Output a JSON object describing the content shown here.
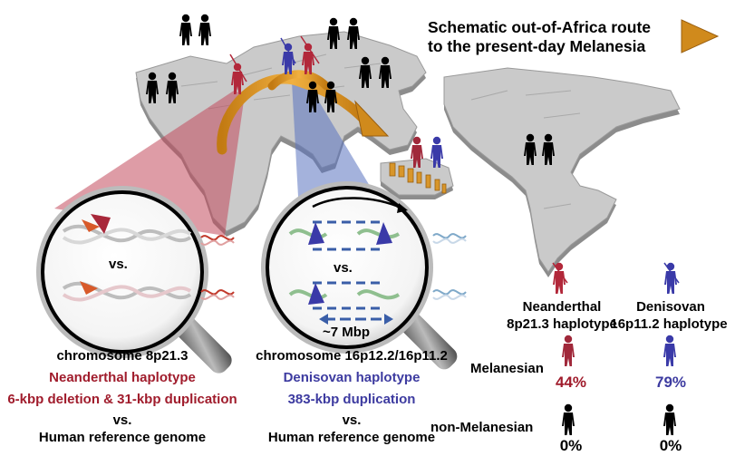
{
  "title_line1": "Schematic out-of-Africa route",
  "title_line2": "to the present-day Melanesia",
  "neanderthal_panel": {
    "vs_label": "vs.",
    "chromosome": "chromosome 8p21.3",
    "haplotype": "Neanderthal haplotype",
    "variant": "6-kbp deletion & 31-kbp duplication",
    "vs": "vs.",
    "reference": "Human reference genome"
  },
  "denisovan_panel": {
    "vs_label": "vs.",
    "size_label": "~7 Mbp",
    "chromosome": "chromosome 16p12.2/16p11.2",
    "haplotype": "Denisovan haplotype",
    "variant": "383-kbp duplication",
    "vs": "vs.",
    "reference": "Human reference genome"
  },
  "table": {
    "col1_line1": "Neanderthal",
    "col1_line2": "8p21.3 haplotype",
    "col2_line1": "Denisovan",
    "col2_line2": "16p11.2 haplotype",
    "row1_label": "Melanesian",
    "row1_col1": "44%",
    "row1_col2": "79%",
    "row2_label": "non-Melanesian",
    "row2_col1": "0%",
    "row2_col2": "0%"
  },
  "colors": {
    "neanderthal": "#b2283a",
    "denisovan": "#3a3aa8",
    "route_arrow": "#d4901e",
    "map": "#c9c9c9",
    "human": "#000000"
  }
}
